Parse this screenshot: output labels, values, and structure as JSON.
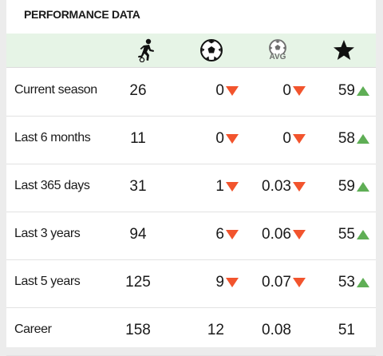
{
  "title": "PERFORMANCE DATA",
  "columns": [
    {
      "icon": "player-running-icon"
    },
    {
      "icon": "soccer-ball-icon"
    },
    {
      "icon": "soccer-ball-avg-icon",
      "text": "AVG"
    },
    {
      "icon": "star-icon"
    }
  ],
  "rows": [
    {
      "label": "Current season",
      "appearances": "26",
      "goals": "0",
      "goals_trend": "down",
      "avg": "0",
      "avg_trend": "down",
      "rating": "59",
      "rating_trend": "up"
    },
    {
      "label": "Last 6 months",
      "appearances": "11",
      "goals": "0",
      "goals_trend": "down",
      "avg": "0",
      "avg_trend": "down",
      "rating": "58",
      "rating_trend": "up"
    },
    {
      "label": "Last 365 days",
      "appearances": "31",
      "goals": "1",
      "goals_trend": "down",
      "avg": "0.03",
      "avg_trend": "down",
      "rating": "59",
      "rating_trend": "up"
    },
    {
      "label": "Last 3 years",
      "appearances": "94",
      "goals": "6",
      "goals_trend": "down",
      "avg": "0.06",
      "avg_trend": "down",
      "rating": "55",
      "rating_trend": "up"
    },
    {
      "label": "Last 5 years",
      "appearances": "125",
      "goals": "9",
      "goals_trend": "down",
      "avg": "0.07",
      "avg_trend": "down",
      "rating": "53",
      "rating_trend": "up"
    },
    {
      "label": "Career",
      "appearances": "158",
      "goals": "12",
      "goals_trend": "none",
      "avg": "0.08",
      "avg_trend": "none",
      "rating": "51",
      "rating_trend": "none"
    }
  ],
  "colors": {
    "header_bg": "#e6f4e6",
    "trend_down": "#f2542d",
    "trend_up": "#5fae55"
  }
}
